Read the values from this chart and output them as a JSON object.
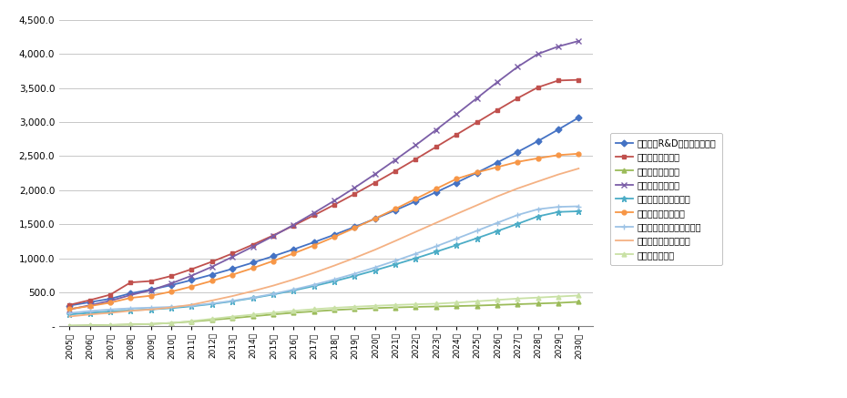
{
  "years": [
    2005,
    2006,
    2007,
    2008,
    2009,
    2010,
    2011,
    2012,
    2013,
    2014,
    2015,
    2016,
    2017,
    2018,
    2019,
    2020,
    2021,
    2022,
    2023,
    2024,
    2025,
    2026,
    2027,
    2028,
    2029,
    2030
  ],
  "series": [
    {
      "name": "건설교통R&D정책인프라사업",
      "color": "#4472C4",
      "marker": "D",
      "markersize": 3.5,
      "linewidth": 1.3,
      "values": [
        305,
        355,
        405,
        485,
        540,
        605,
        680,
        760,
        845,
        935,
        1030,
        1130,
        1235,
        1345,
        1460,
        1580,
        1705,
        1835,
        1970,
        2110,
        2255,
        2405,
        2560,
        2720,
        2890,
        3065
      ]
    },
    {
      "name": "건설기술혁신사업",
      "color": "#C0504D",
      "marker": "s",
      "markersize": 3.5,
      "linewidth": 1.3,
      "values": [
        315,
        385,
        465,
        645,
        665,
        740,
        840,
        950,
        1070,
        1200,
        1335,
        1480,
        1630,
        1785,
        1945,
        2110,
        2280,
        2455,
        2635,
        2815,
        2995,
        3175,
        3350,
        3510,
        3610,
        3620
      ]
    },
    {
      "name": "지역기술혁신사업",
      "color": "#9BBB59",
      "marker": "^",
      "markersize": 3.5,
      "linewidth": 1.3,
      "values": [
        10,
        15,
        20,
        28,
        35,
        50,
        70,
        95,
        120,
        148,
        175,
        200,
        220,
        240,
        255,
        268,
        278,
        286,
        292,
        298,
        305,
        315,
        325,
        335,
        345,
        360
      ]
    },
    {
      "name": "첨단도시개발사업",
      "color": "#7B5EA7",
      "marker": "x",
      "markersize": 5,
      "linewidth": 1.3,
      "values": [
        248,
        310,
        375,
        460,
        530,
        630,
        745,
        875,
        1020,
        1170,
        1325,
        1490,
        1665,
        1845,
        2035,
        2235,
        2445,
        2660,
        2885,
        3115,
        3350,
        3585,
        3810,
        4000,
        4110,
        4190
      ]
    },
    {
      "name": "플랫폼기술고도화사업",
      "color": "#4BACC6",
      "marker": "*",
      "markersize": 5,
      "linewidth": 1.3,
      "values": [
        175,
        198,
        218,
        235,
        248,
        268,
        295,
        328,
        368,
        415,
        468,
        527,
        592,
        663,
        740,
        823,
        910,
        1000,
        1095,
        1193,
        1294,
        1398,
        1505,
        1615,
        1680,
        1690
      ]
    },
    {
      "name": "교통체계효율화사업",
      "color": "#F79646",
      "marker": "o",
      "markersize": 3.5,
      "linewidth": 1.3,
      "values": [
        255,
        298,
        348,
        418,
        450,
        510,
        585,
        668,
        758,
        855,
        960,
        1070,
        1188,
        1313,
        1445,
        1583,
        1725,
        1873,
        2020,
        2165,
        2260,
        2338,
        2415,
        2468,
        2515,
        2535
      ]
    },
    {
      "name": "미래도시철도기술개발사업",
      "color": "#9DC3E6",
      "marker": "+",
      "markersize": 5,
      "linewidth": 1.3,
      "values": [
        195,
        225,
        248,
        265,
        275,
        285,
        305,
        335,
        375,
        422,
        477,
        540,
        610,
        688,
        773,
        865,
        963,
        1067,
        1175,
        1288,
        1403,
        1520,
        1635,
        1720,
        1755,
        1763
      ]
    },
    {
      "name": "미래철도기술개발사업",
      "color": "#F4B183",
      "marker": null,
      "markersize": 0,
      "linewidth": 1.3,
      "values": [
        145,
        175,
        198,
        228,
        248,
        278,
        318,
        380,
        445,
        518,
        598,
        688,
        785,
        892,
        1005,
        1125,
        1255,
        1388,
        1520,
        1650,
        1778,
        1908,
        2025,
        2128,
        2230,
        2318
      ]
    },
    {
      "name": "항공선진화사업",
      "color": "#C9E1A5",
      "marker": "^",
      "markersize": 3.5,
      "linewidth": 1.3,
      "values": [
        8,
        12,
        18,
        25,
        33,
        50,
        78,
        110,
        143,
        172,
        200,
        228,
        252,
        272,
        288,
        302,
        314,
        324,
        333,
        348,
        368,
        388,
        408,
        423,
        438,
        453
      ]
    }
  ],
  "ylim": [
    0,
    4500
  ],
  "yticks": [
    0,
    500,
    1000,
    1500,
    2000,
    2500,
    3000,
    3500,
    4000,
    4500
  ],
  "background_color": "#FFFFFF",
  "plot_bg_color": "#FFFFFF",
  "grid_color": "#BEBEBE",
  "legend_names": [
    "건설교통R&D정책인프라사업",
    "건설기술혁신사업",
    "지역기술혁신사업",
    "첨단도시개발사업",
    "플랫폼기술고도화사업",
    "교통체계효율화사업",
    "미래도시철도기술개발사업",
    "미래철도기술개발사업",
    "항공선진화사업"
  ]
}
